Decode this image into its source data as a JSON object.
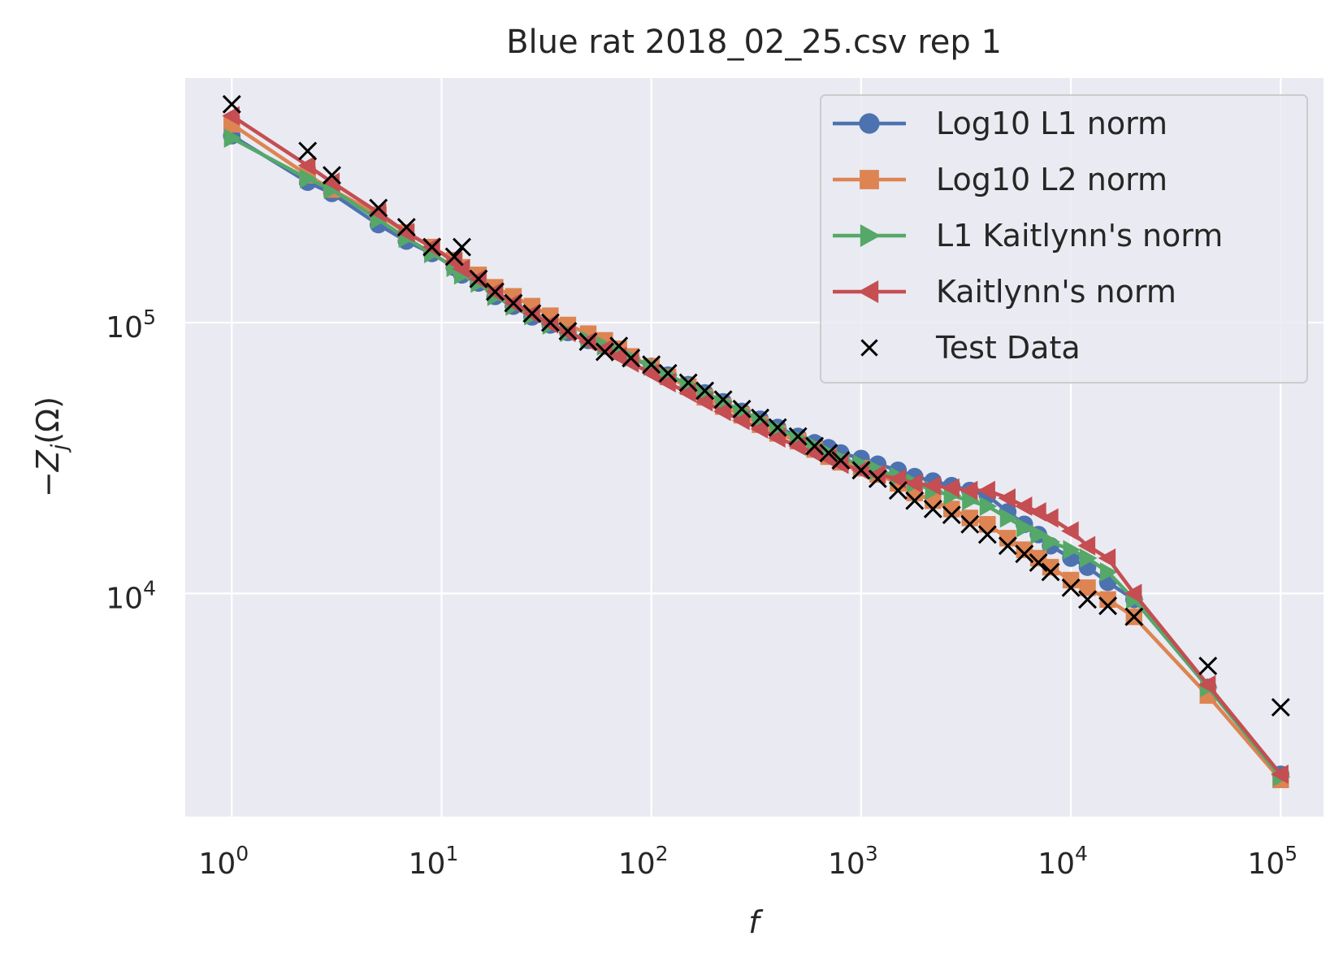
{
  "chart_data": {
    "type": "line",
    "title": "Blue rat 2018_02_25.csv rep 1",
    "xlabel": "f",
    "ylabel_parts": {
      "prefix": "−Z",
      "subscript": "j",
      "suffix": "(Ω)"
    },
    "xscale": "log",
    "yscale": "log",
    "xlim": [
      0.6,
      160000
    ],
    "ylim": [
      1500,
      800000
    ],
    "grid": true,
    "legend_position": "top-right",
    "x_ticks": [
      {
        "base": "10",
        "exp": "0",
        "value": 1
      },
      {
        "base": "10",
        "exp": "1",
        "value": 10
      },
      {
        "base": "10",
        "exp": "2",
        "value": 100
      },
      {
        "base": "10",
        "exp": "3",
        "value": 1000
      },
      {
        "base": "10",
        "exp": "4",
        "value": 10000
      },
      {
        "base": "10",
        "exp": "5",
        "value": 100000
      }
    ],
    "y_ticks": [
      {
        "base": "10",
        "exp": "4",
        "value": 10000
      },
      {
        "base": "10",
        "exp": "5",
        "value": 100000
      }
    ],
    "x": [
      1,
      2.3,
      3,
      5,
      6.8,
      9,
      11.5,
      12.5,
      15,
      18,
      22,
      27,
      33,
      40,
      50,
      60,
      70,
      80,
      100,
      120,
      150,
      180,
      220,
      270,
      330,
      400,
      500,
      600,
      700,
      800,
      1000,
      1200,
      1500,
      1800,
      2200,
      2700,
      3300,
      4000,
      5000,
      6000,
      7000,
      8000,
      10000,
      12000,
      15000,
      20000,
      45000,
      100000
    ],
    "series": [
      {
        "name": "Log10 L1 norm",
        "color": "#4c72b0",
        "marker": "circle",
        "values": [
          490000,
          330000,
          300000,
          230000,
          200000,
          180000,
          160000,
          150000,
          140000,
          125000,
          115000,
          105000,
          98000,
          92000,
          86000,
          82000,
          78000,
          74000,
          69000,
          64000,
          59000,
          55000,
          51000,
          47000,
          44000,
          41000,
          38000,
          36000,
          34500,
          33000,
          31500,
          30000,
          28500,
          27000,
          26000,
          25000,
          24000,
          23000,
          20000,
          18000,
          16500,
          15000,
          13500,
          12500,
          11000,
          9500,
          4500,
          2150
        ]
      },
      {
        "name": "Log10 L2 norm",
        "color": "#dd8452",
        "marker": "square",
        "values": [
          540000,
          350000,
          310000,
          250000,
          215000,
          190000,
          170000,
          160000,
          150000,
          135000,
          125000,
          115000,
          106000,
          98000,
          91000,
          86000,
          80000,
          75000,
          69000,
          63000,
          58000,
          53000,
          49000,
          45500,
          42000,
          39000,
          36500,
          34000,
          32000,
          30500,
          29000,
          27500,
          25500,
          23500,
          22000,
          20500,
          19000,
          18000,
          16000,
          14500,
          13500,
          12500,
          11200,
          10500,
          9500,
          8200,
          4200,
          2050
        ]
      },
      {
        "name": "L1 Kaitlynn's norm",
        "color": "#55a868",
        "marker": "triangle-right",
        "values": [
          480000,
          340000,
          310000,
          240000,
          205000,
          180000,
          160000,
          150000,
          140000,
          125000,
          115000,
          106000,
          98000,
          92000,
          86000,
          82000,
          78000,
          74000,
          69000,
          64000,
          59000,
          55000,
          51000,
          47000,
          43500,
          40500,
          37500,
          35000,
          33000,
          31500,
          30000,
          28500,
          27000,
          25500,
          24000,
          23000,
          22000,
          21000,
          19000,
          17500,
          16500,
          15500,
          14500,
          13500,
          12000,
          9500,
          4500,
          2100
        ]
      },
      {
        "name": "Kaitlynn's norm",
        "color": "#c44e52",
        "marker": "triangle-left",
        "values": [
          580000,
          380000,
          330000,
          255000,
          215000,
          190000,
          168000,
          158000,
          145000,
          130000,
          118000,
          108000,
          99000,
          92000,
          85000,
          80000,
          75000,
          71000,
          65000,
          60000,
          55000,
          51000,
          47000,
          43500,
          40500,
          37500,
          35000,
          33000,
          31500,
          30000,
          28500,
          27500,
          26500,
          25500,
          25000,
          24500,
          24000,
          24000,
          22500,
          21000,
          20000,
          19000,
          17000,
          15000,
          13500,
          10000,
          4600,
          2150
        ]
      },
      {
        "name": "Test Data",
        "color": "#000000",
        "marker": "x",
        "values": [
          640000,
          430000,
          350000,
          265000,
          225000,
          190000,
          175000,
          190000,
          145000,
          130000,
          118000,
          108000,
          100000,
          93000,
          85000,
          78000,
          82000,
          74000,
          70000,
          65000,
          60000,
          56000,
          52000,
          48000,
          44500,
          41000,
          38000,
          35000,
          33000,
          31000,
          28500,
          26500,
          24000,
          22000,
          20500,
          19500,
          18000,
          16500,
          15000,
          14000,
          13000,
          12000,
          10500,
          9500,
          9000,
          8200,
          5400,
          3800
        ]
      }
    ]
  }
}
